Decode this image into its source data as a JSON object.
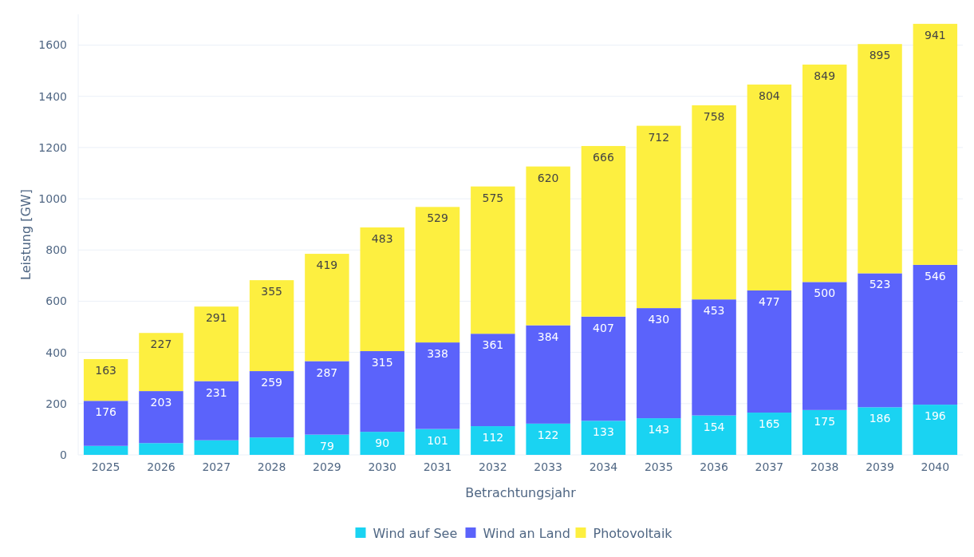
{
  "chart_data": {
    "type": "bar",
    "stacked": true,
    "xlabel": "Betrachtungsjahr",
    "ylabel": "Leistung [GW]",
    "categories": [
      "2025",
      "2026",
      "2027",
      "2028",
      "2029",
      "2030",
      "2031",
      "2032",
      "2033",
      "2034",
      "2035",
      "2036",
      "2037",
      "2038",
      "2039",
      "2040"
    ],
    "series": [
      {
        "name": "Wind auf See",
        "color": "#1ad3f2",
        "values": [
          35,
          46,
          57,
          68,
          79,
          90,
          101,
          112,
          122,
          133,
          143,
          154,
          165,
          175,
          186,
          196
        ],
        "value_labels": [
          null,
          null,
          null,
          null,
          "79",
          "90",
          "101",
          "112",
          "122",
          "133",
          "143",
          "154",
          "165",
          "175",
          "186",
          "196"
        ]
      },
      {
        "name": "Wind an Land",
        "color": "#5b63fb",
        "values": [
          176,
          203,
          231,
          259,
          287,
          315,
          338,
          361,
          384,
          407,
          430,
          453,
          477,
          500,
          523,
          546
        ],
        "value_labels": [
          "176",
          "203",
          "231",
          "259",
          "287",
          "315",
          "338",
          "361",
          "384",
          "407",
          "430",
          "453",
          "477",
          "500",
          "523",
          "546"
        ]
      },
      {
        "name": "Photovoltaik",
        "color": "#fdef40",
        "values": [
          163,
          227,
          291,
          355,
          419,
          483,
          529,
          575,
          620,
          666,
          712,
          758,
          804,
          849,
          895,
          941
        ],
        "value_labels": [
          "163",
          "227",
          "291",
          "355",
          "419",
          "483",
          "529",
          "575",
          "620",
          "666",
          "712",
          "758",
          "804",
          "849",
          "895",
          "941"
        ]
      }
    ],
    "ylim": [
      0,
      1720
    ],
    "yticks": [
      0,
      200,
      400,
      600,
      800,
      1000,
      1200,
      1400,
      1600
    ],
    "grid": "y",
    "legend": "bottom"
  }
}
